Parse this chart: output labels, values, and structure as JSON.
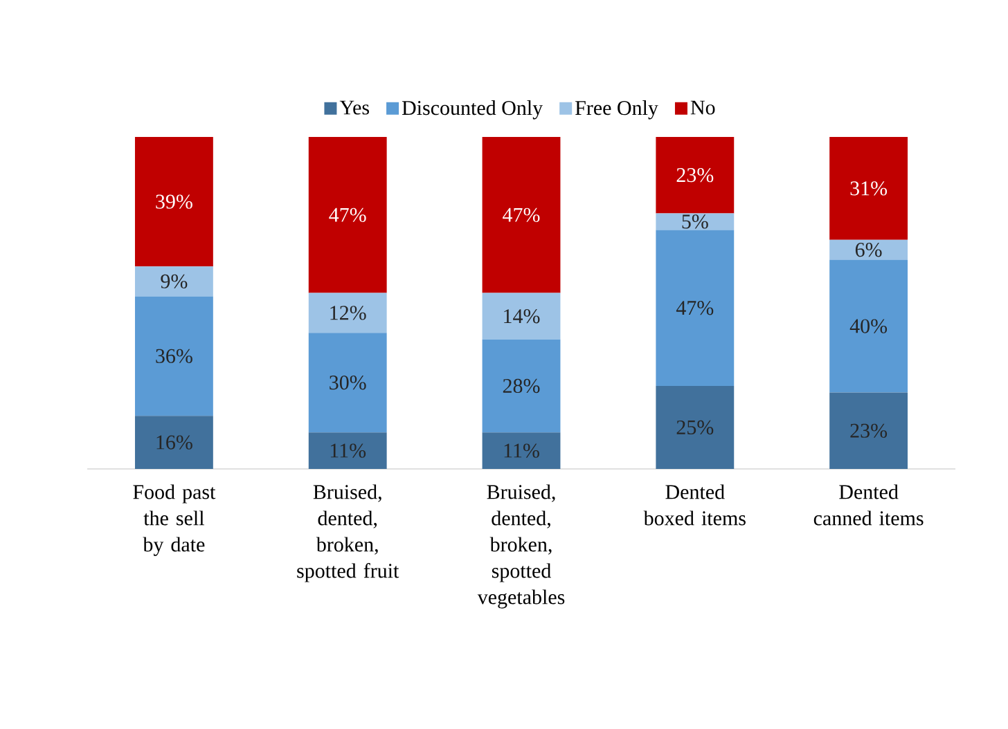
{
  "chart_data": {
    "type": "bar",
    "stacked": true,
    "legend": "top",
    "categories": [
      "Food past the sell by date",
      "Bruised, dented, broken, spotted fruit",
      "Bruised, dented, broken, spotted vegetables",
      "Dented boxed items",
      "Dented canned items"
    ],
    "series": [
      {
        "name": "Yes",
        "color": "#41719c",
        "values": [
          16,
          11,
          11,
          25,
          23
        ],
        "value_labels": [
          "16%",
          "11%",
          "11%",
          "25%",
          "23%"
        ]
      },
      {
        "name": "Discounted Only",
        "color": "#5b9bd5",
        "values": [
          36,
          30,
          28,
          47,
          40
        ],
        "value_labels": [
          "36%",
          "30%",
          "28%",
          "47%",
          "40%"
        ]
      },
      {
        "name": "Free Only",
        "color": "#9dc3e6",
        "values": [
          9,
          12,
          14,
          5,
          6
        ],
        "value_labels": [
          "9%",
          "12%",
          "14%",
          "5%",
          "6%"
        ]
      },
      {
        "name": "No",
        "color": "#c00000",
        "values": [
          39,
          47,
          47,
          23,
          31
        ],
        "value_labels": [
          "39%",
          "47%",
          "47%",
          "23%",
          "31%"
        ]
      }
    ]
  }
}
